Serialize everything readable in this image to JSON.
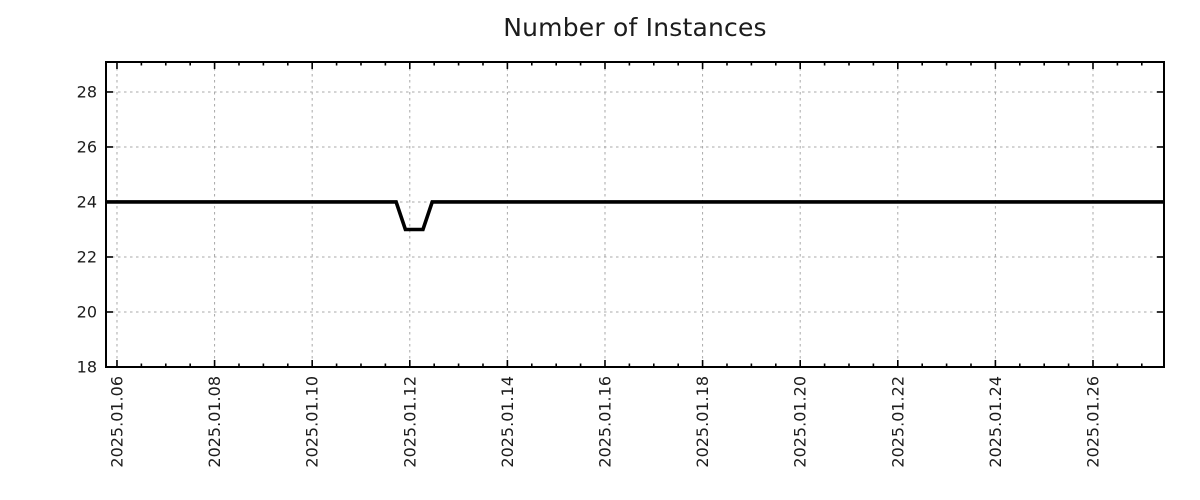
{
  "chart_data": {
    "type": "line",
    "title": "Number of Instances",
    "legend": "none",
    "series": [
      {
        "name": "instances",
        "color": "#000000",
        "line_width": 3.6,
        "points_x_day_of_jan_2025": [
          5.775,
          11.72,
          11.91,
          12.27,
          12.46,
          27.455
        ],
        "points_y": [
          24,
          24,
          23,
          23,
          24,
          24
        ]
      }
    ],
    "x_axis": {
      "unit": "date",
      "range_days": [
        5.775,
        27.455
      ],
      "major_ticks": [
        {
          "day": 6,
          "label": "2025.01.06"
        },
        {
          "day": 8,
          "label": "2025.01.08"
        },
        {
          "day": 10,
          "label": "2025.01.10"
        },
        {
          "day": 12,
          "label": "2025.01.12"
        },
        {
          "day": 14,
          "label": "2025.01.14"
        },
        {
          "day": 16,
          "label": "2025.01.16"
        },
        {
          "day": 18,
          "label": "2025.01.18"
        },
        {
          "day": 20,
          "label": "2025.01.20"
        },
        {
          "day": 22,
          "label": "2025.01.22"
        },
        {
          "day": 24,
          "label": "2025.01.24"
        },
        {
          "day": 26,
          "label": "2025.01.26"
        }
      ],
      "minor_tick_step_days": 0.5,
      "label_rotation_deg": -90
    },
    "y_axis": {
      "range": [
        18,
        29.09
      ],
      "major_ticks": [
        18,
        20,
        22,
        24,
        26,
        28
      ],
      "minor_ticks": "none"
    },
    "grid": {
      "visible": true,
      "style": "dashed",
      "color": "#a8a8a8"
    },
    "colors": {
      "axis": "#000000",
      "text": "#1c1c1c",
      "background": "#ffffff"
    }
  }
}
